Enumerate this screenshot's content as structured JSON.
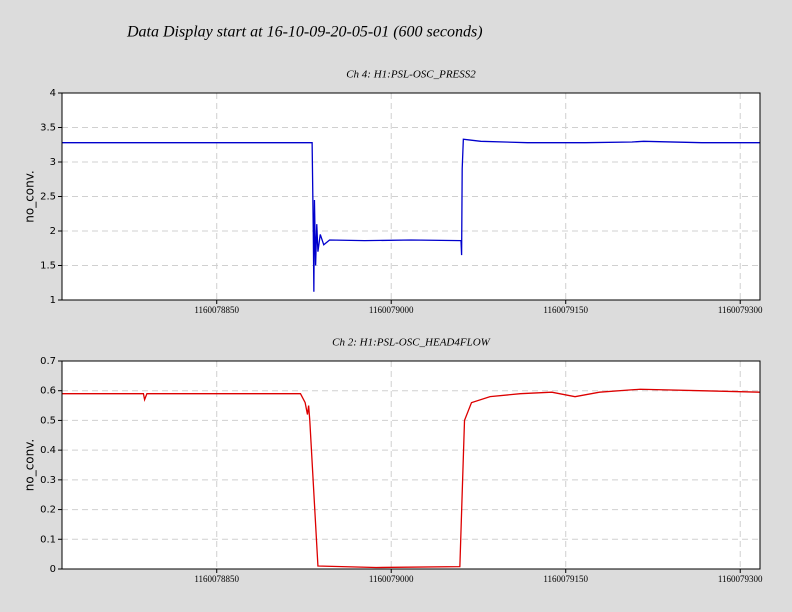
{
  "title": "Data Display start at 16-10-09-20-05-01 (600 seconds)",
  "chart_data": [
    {
      "type": "line",
      "title": "Ch 4: H1:PSL-OSC_PRESS2",
      "ylabel": "no_conv.",
      "color": "#0000cc",
      "grid": true,
      "xlim": [
        1160078717,
        1160079317
      ],
      "ylim": [
        1,
        4
      ],
      "xticks": [
        1160078850,
        1160079000,
        1160079150,
        1160079300
      ],
      "yticks": [
        1,
        1.5,
        2,
        2.5,
        3,
        3.5,
        4
      ],
      "x": [
        1160078717,
        1160078817,
        1160078932,
        1160078933,
        1160078933.5,
        1160078934,
        1160078935,
        1160078936,
        1160078937,
        1160078939,
        1160078942,
        1160078947,
        1160078977,
        1160079017,
        1160079060,
        1160079060.5,
        1160079061,
        1160079062,
        1160079067,
        1160079077,
        1160079117,
        1160079167,
        1160079207,
        1160079217,
        1160079267,
        1160079317
      ],
      "values": [
        3.28,
        3.28,
        3.28,
        2.0,
        1.12,
        2.45,
        1.5,
        2.1,
        1.7,
        1.95,
        1.8,
        1.87,
        1.86,
        1.87,
        1.86,
        1.65,
        2.9,
        3.33,
        3.32,
        3.3,
        3.28,
        3.28,
        3.29,
        3.3,
        3.28,
        3.28
      ]
    },
    {
      "type": "line",
      "title": "Ch 2: H1:PSL-OSC_HEAD4FLOW",
      "ylabel": "no_conv.",
      "color": "#dd0000",
      "grid": true,
      "xlim": [
        1160078717,
        1160079317
      ],
      "ylim": [
        0,
        0.7
      ],
      "xticks": [
        1160078850,
        1160079000,
        1160079150,
        1160079300
      ],
      "yticks": [
        0,
        0.1,
        0.2,
        0.3,
        0.4,
        0.5,
        0.6,
        0.7
      ],
      "x": [
        1160078717,
        1160078787,
        1160078788,
        1160078790,
        1160078850,
        1160078922,
        1160078926,
        1160078928,
        1160078929,
        1160078930,
        1160078937,
        1160078987,
        1160079059,
        1160079063,
        1160079069,
        1160079085,
        1160079111,
        1160079138,
        1160079158,
        1160079179,
        1160079214,
        1160079265,
        1160079317
      ],
      "values": [
        0.59,
        0.59,
        0.57,
        0.59,
        0.59,
        0.59,
        0.56,
        0.52,
        0.55,
        0.5,
        0.01,
        0.005,
        0.008,
        0.5,
        0.56,
        0.58,
        0.59,
        0.595,
        0.58,
        0.595,
        0.605,
        0.6,
        0.595
      ]
    }
  ]
}
